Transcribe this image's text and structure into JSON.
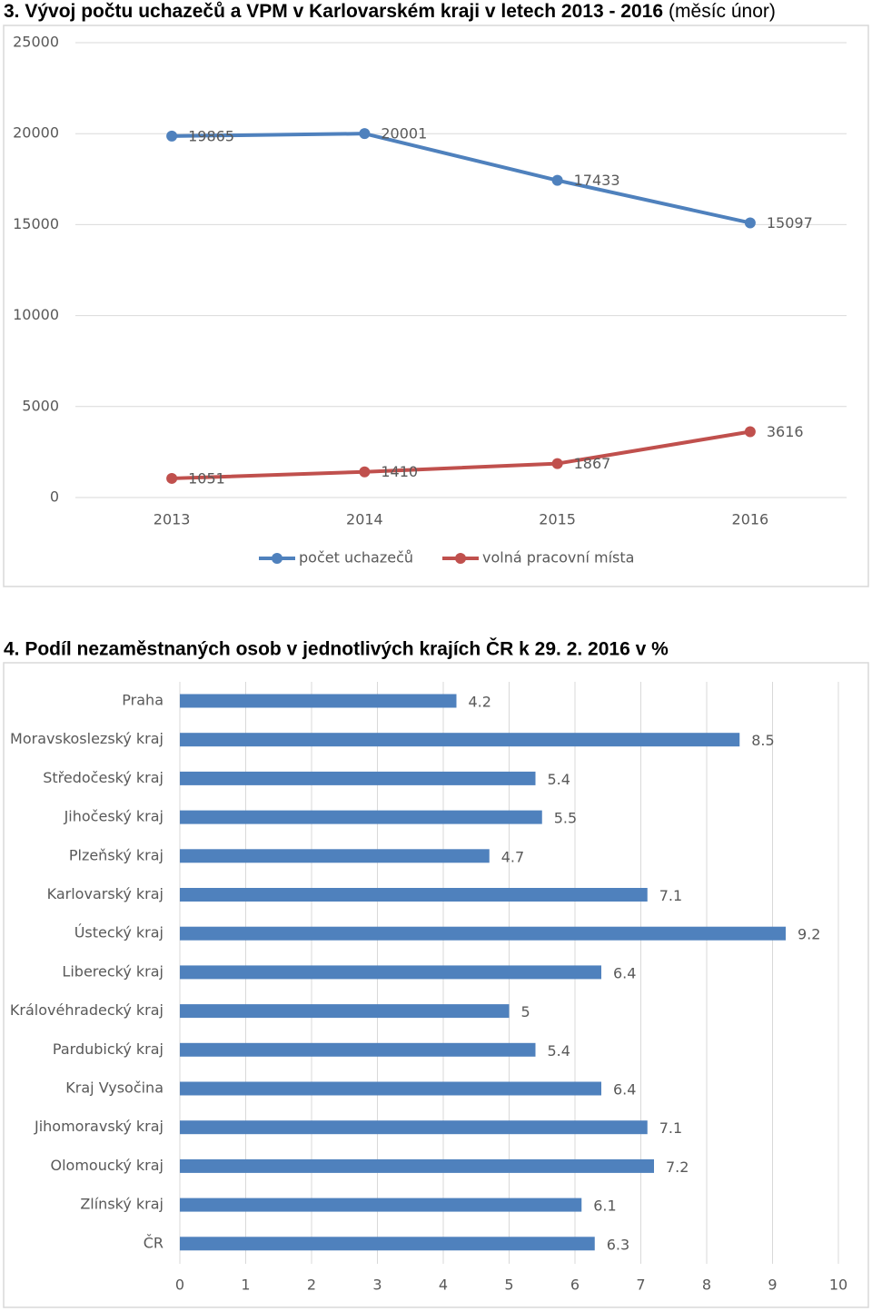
{
  "chart_data": [
    {
      "type": "line",
      "title": "3. Vývoj počtu uchazečů a VPM v Karlovarském kraji v letech 2013 - 2016",
      "subtitle": "(měsíc únor)",
      "categories": [
        "2013",
        "2014",
        "2015",
        "2016"
      ],
      "series": [
        {
          "name": "počet uchazečů",
          "color": "#4f81bd",
          "values": [
            19865,
            20001,
            17433,
            15097
          ]
        },
        {
          "name": "volná pracovní místa",
          "color": "#c0504d",
          "values": [
            1051,
            1410,
            1867,
            3616
          ]
        }
      ],
      "ylim": [
        0,
        25000
      ],
      "yticks": [
        0,
        5000,
        10000,
        15000,
        20000,
        25000
      ],
      "grid": true,
      "legend": "bottom"
    },
    {
      "type": "hbar",
      "title": "4. Podíl nezaměstnaných osob v jednotlivých krajích ČR k 29. 2. 2016 v %",
      "categories": [
        "Praha",
        "Moravskoslezský kraj",
        "Středočeský kraj",
        "Jihočeský kraj",
        "Plzeňský kraj",
        "Karlovarský kraj",
        "Ústecký kraj",
        "Liberecký kraj",
        "Královéhradecký kraj",
        "Pardubický kraj",
        "Kraj Vysočina",
        "Jihomoravský kraj",
        "Olomoucký kraj",
        "Zlínský kraj",
        "ČR"
      ],
      "values": [
        4.2,
        8.5,
        5.4,
        5.5,
        4.7,
        7.1,
        9.2,
        6.4,
        5,
        5.4,
        6.4,
        7.1,
        7.2,
        6.1,
        6.3
      ],
      "color": "#4f81bd",
      "xlim": [
        0,
        10
      ],
      "xticks": [
        0,
        1,
        2,
        3,
        4,
        5,
        6,
        7,
        8,
        9,
        10
      ],
      "grid": true
    }
  ]
}
